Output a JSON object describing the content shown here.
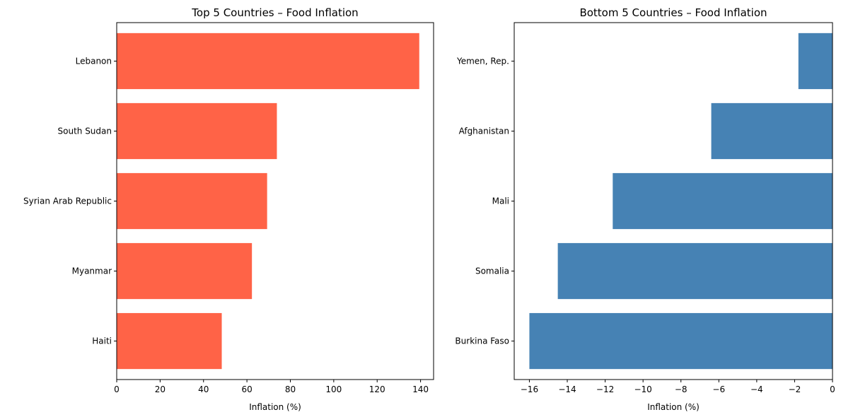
{
  "chart_data": [
    {
      "type": "bar",
      "orientation": "horizontal",
      "title": "Top 5 Countries – Food Inflation",
      "xlabel": "Inflation (%)",
      "ylabel": "",
      "categories": [
        "Lebanon",
        "South Sudan",
        "Syrian Arab Republic",
        "Myanmar",
        "Haiti"
      ],
      "values": [
        139.4,
        73.8,
        69.3,
        62.3,
        48.4
      ],
      "xlim": [
        0,
        146
      ],
      "xticks": [
        0,
        20,
        40,
        60,
        80,
        100,
        120,
        140
      ],
      "xtick_labels": [
        "0",
        "20",
        "40",
        "60",
        "80",
        "100",
        "120",
        "140"
      ],
      "color": "#ff6347",
      "grid": false
    },
    {
      "type": "bar",
      "orientation": "horizontal",
      "title": "Bottom 5 Countries – Food Inflation",
      "xlabel": "Inflation (%)",
      "ylabel": "",
      "categories": [
        "Yemen, Rep.",
        "Afghanistan",
        "Mali",
        "Somalia",
        "Burkina Faso"
      ],
      "values": [
        -1.8,
        -6.4,
        -11.6,
        -14.5,
        -16.0
      ],
      "xlim": [
        -16.8,
        0
      ],
      "xticks": [
        -16,
        -14,
        -12,
        -10,
        -8,
        -6,
        -4,
        -2,
        0
      ],
      "xtick_labels": [
        "−16",
        "−14",
        "−12",
        "−10",
        "−8",
        "−6",
        "−4",
        "−2",
        "0"
      ],
      "color": "#4682b4",
      "grid": false
    }
  ]
}
